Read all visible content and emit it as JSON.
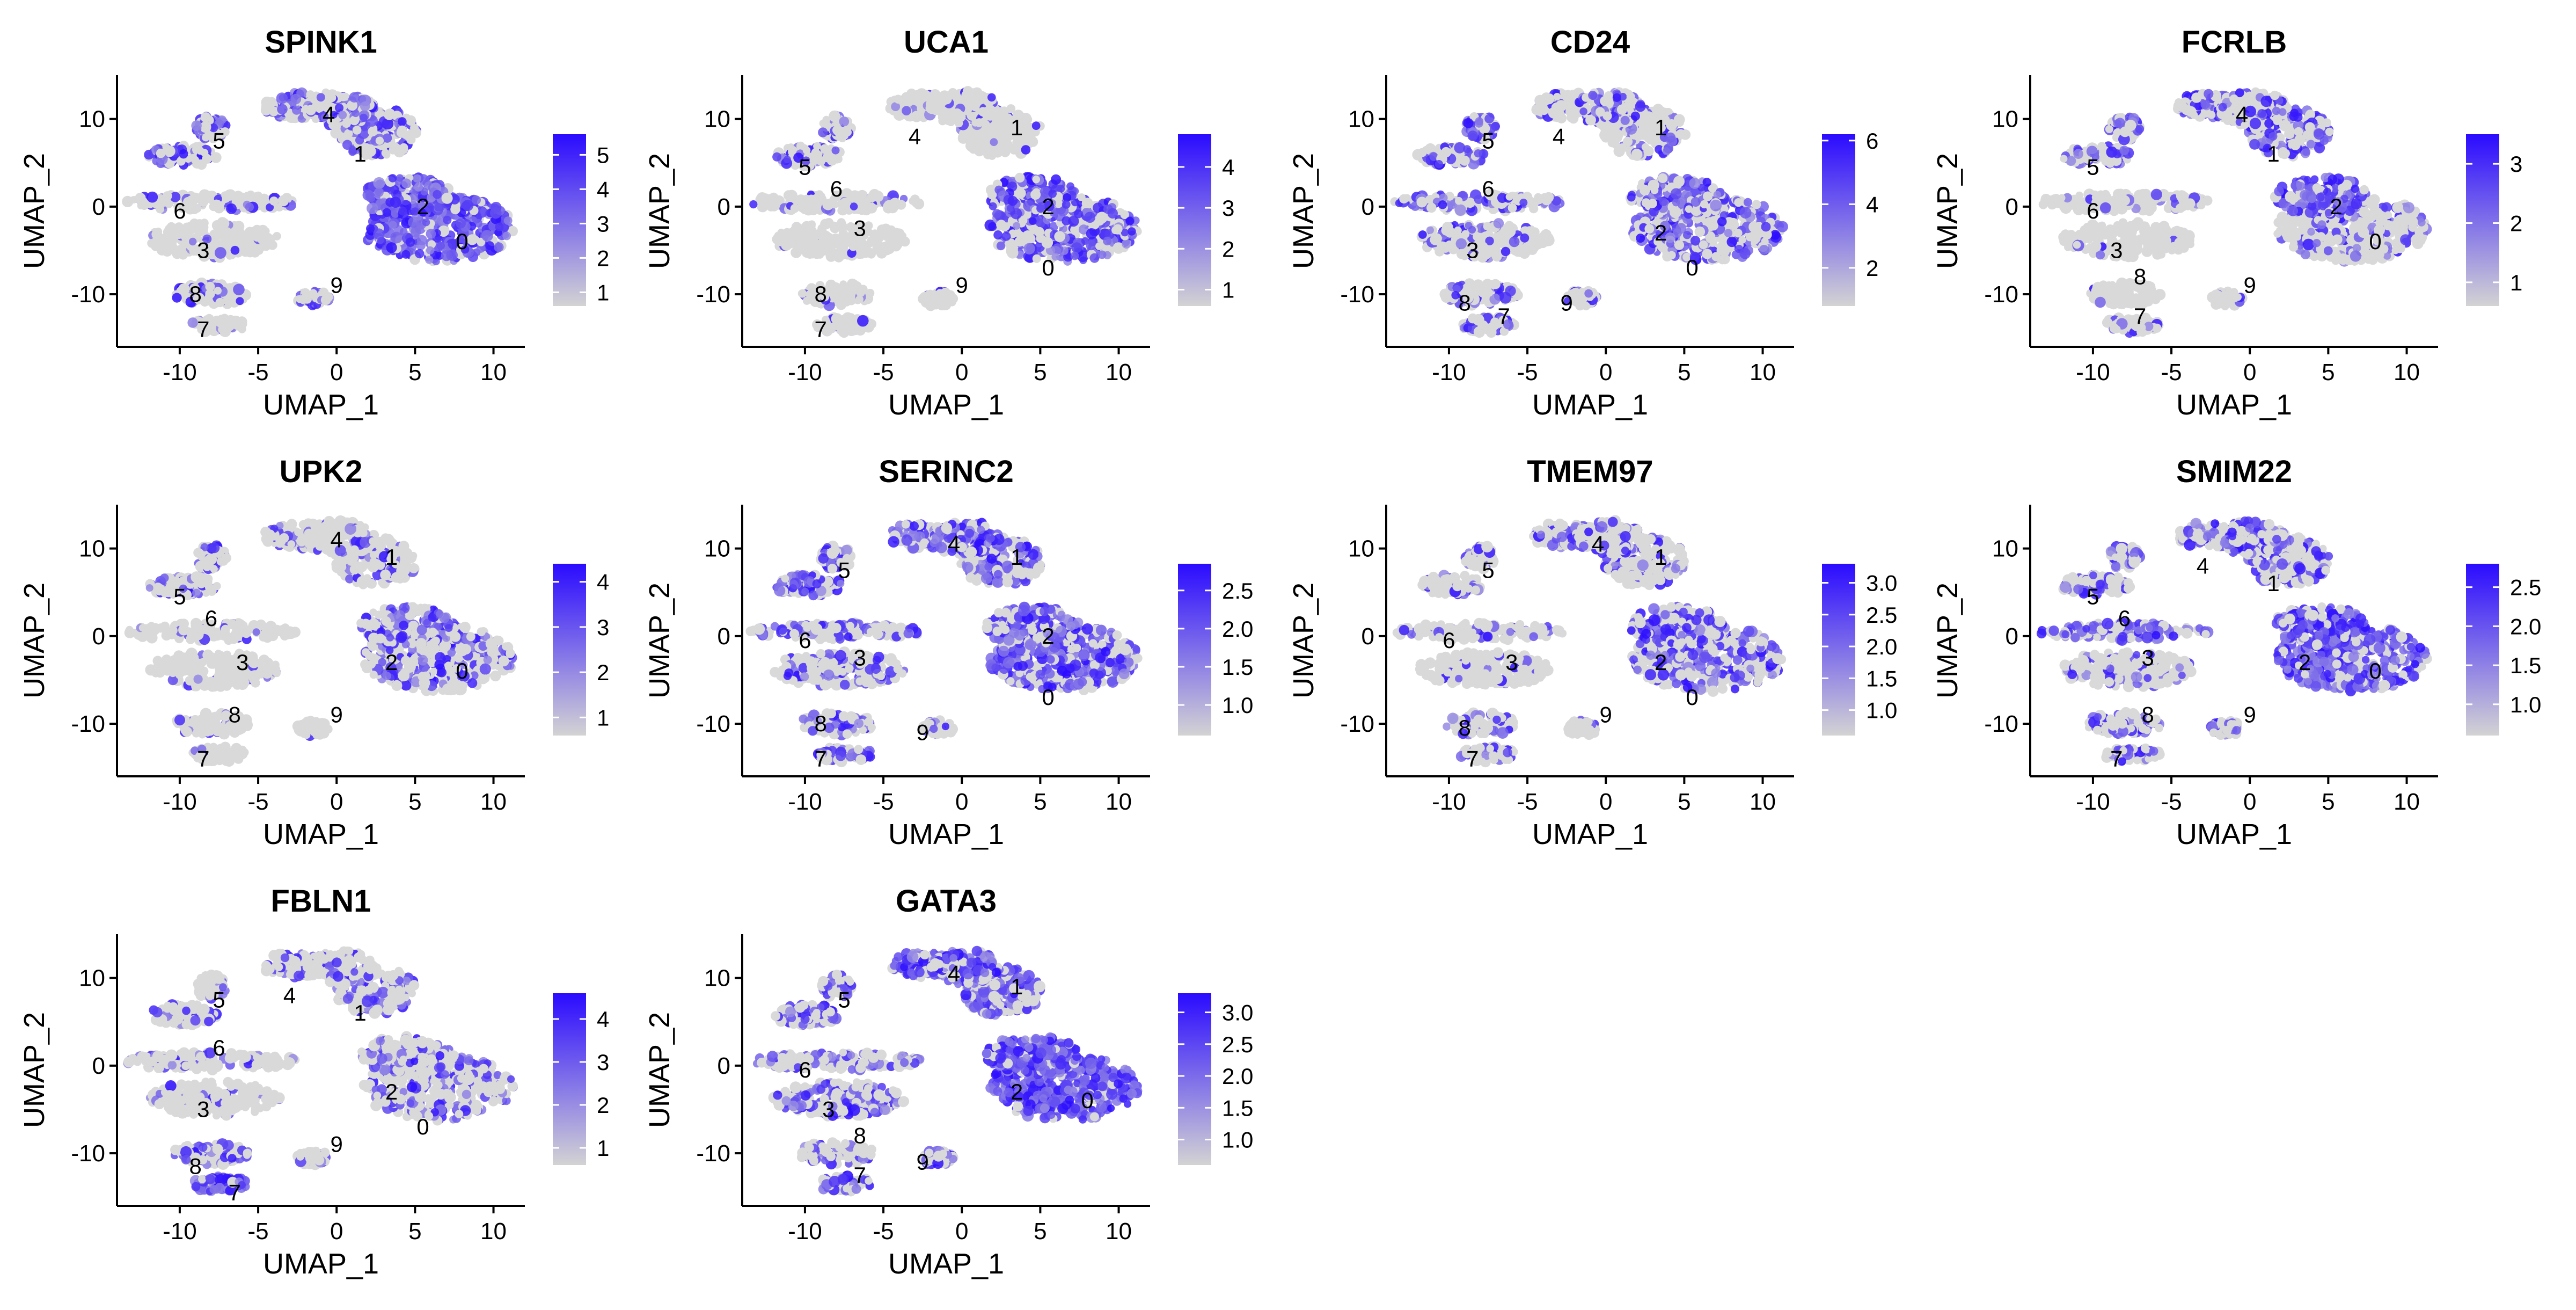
{
  "figure": {
    "type": "feature-plot-grid",
    "low_color": "#d3d3d3",
    "high_color": "#2b0bff",
    "point_color": "#d9d9d9"
  },
  "chart_data": [
    {
      "type": "scatter",
      "title": "SPINK1",
      "xlabel": "UMAP_1",
      "ylabel": "UMAP_2",
      "xlim": [
        -14,
        12
      ],
      "ylim": [
        -16,
        15
      ],
      "xticks": [
        -10,
        -5,
        0,
        5,
        10
      ],
      "yticks": [
        -10,
        0,
        10
      ],
      "legend": {
        "min": 0.6,
        "max": 5.6,
        "ticks": [
          "1",
          "2",
          "3",
          "4",
          "5"
        ],
        "tick_values": [
          1,
          2,
          3,
          4,
          5
        ]
      },
      "clusters": [
        {
          "label": "0",
          "x": 8,
          "y": -4
        },
        {
          "label": "1",
          "x": 1.5,
          "y": 6
        },
        {
          "label": "2",
          "x": 5.5,
          "y": 0
        },
        {
          "label": "3",
          "x": -8.5,
          "y": -5
        },
        {
          "label": "4",
          "x": -0.5,
          "y": 10.5
        },
        {
          "label": "5",
          "x": -7.5,
          "y": 7.5
        },
        {
          "label": "6",
          "x": -10,
          "y": -0.5
        },
        {
          "label": "7",
          "x": -8.5,
          "y": -14
        },
        {
          "label": "8",
          "x": -9,
          "y": -10
        },
        {
          "label": "9",
          "x": 0,
          "y": -9
        }
      ],
      "expression": {
        "c0": 0.8,
        "c1": 0.5,
        "c2": 0.8,
        "c3": 0.1,
        "c4": 0.4,
        "c5": 0.5,
        "c6": 0.3,
        "c7": 0.2,
        "c8": 0.4,
        "c9": 0.3
      }
    },
    {
      "type": "scatter",
      "title": "UCA1",
      "xlabel": "UMAP_1",
      "ylabel": "UMAP_2",
      "xlim": [
        -14,
        12
      ],
      "ylim": [
        -16,
        15
      ],
      "xticks": [
        -10,
        -5,
        0,
        5,
        10
      ],
      "yticks": [
        -10,
        0,
        10
      ],
      "legend": {
        "min": 0.6,
        "max": 4.8,
        "ticks": [
          "1",
          "2",
          "3",
          "4"
        ],
        "tick_values": [
          1,
          2,
          3,
          4
        ]
      },
      "clusters": [
        {
          "label": "0",
          "x": 5.5,
          "y": -7
        },
        {
          "label": "1",
          "x": 3.5,
          "y": 9
        },
        {
          "label": "2",
          "x": 5.5,
          "y": 0
        },
        {
          "label": "3",
          "x": -6.5,
          "y": -2.5
        },
        {
          "label": "4",
          "x": -3,
          "y": 8
        },
        {
          "label": "5",
          "x": -10,
          "y": 4.5
        },
        {
          "label": "6",
          "x": -8,
          "y": 2
        },
        {
          "label": "7",
          "x": -9,
          "y": -14
        },
        {
          "label": "8",
          "x": -9,
          "y": -10
        },
        {
          "label": "9",
          "x": 0,
          "y": -9
        }
      ],
      "expression": {
        "c0": 0.6,
        "c1": 0.1,
        "c2": 0.7,
        "c3": 0.05,
        "c4": 0.3,
        "c5": 0.3,
        "c6": 0.2,
        "c7": 0.05,
        "c8": 0.1,
        "c9": 0.1
      }
    },
    {
      "type": "scatter",
      "title": "CD24",
      "xlabel": "UMAP_1",
      "ylabel": "UMAP_2",
      "xlim": [
        -14,
        12
      ],
      "ylim": [
        -16,
        15
      ],
      "xticks": [
        -10,
        -5,
        0,
        5,
        10
      ],
      "yticks": [
        -10,
        0,
        10
      ],
      "legend": {
        "min": 0.8,
        "max": 6.2,
        "ticks": [
          "2",
          "4",
          "6"
        ],
        "tick_values": [
          2,
          4,
          6
        ]
      },
      "clusters": [
        {
          "label": "0",
          "x": 5.5,
          "y": -7
        },
        {
          "label": "1",
          "x": 3.5,
          "y": 9
        },
        {
          "label": "2",
          "x": 3.5,
          "y": -3
        },
        {
          "label": "3",
          "x": -8.5,
          "y": -5
        },
        {
          "label": "4",
          "x": -3,
          "y": 8
        },
        {
          "label": "5",
          "x": -7.5,
          "y": 7.5
        },
        {
          "label": "6",
          "x": -7.5,
          "y": 2
        },
        {
          "label": "7",
          "x": -6.5,
          "y": -12.5
        },
        {
          "label": "8",
          "x": -9,
          "y": -11
        },
        {
          "label": "9",
          "x": -2.5,
          "y": -11
        }
      ],
      "expression": {
        "c0": 0.5,
        "c1": 0.2,
        "c2": 0.6,
        "c3": 0.3,
        "c4": 0.4,
        "c5": 0.5,
        "c6": 0.4,
        "c7": 0.3,
        "c8": 0.3,
        "c9": 0.2
      }
    },
    {
      "type": "scatter",
      "title": "FCRLB",
      "xlabel": "UMAP_1",
      "ylabel": "UMAP_2",
      "xlim": [
        -14,
        12
      ],
      "ylim": [
        -16,
        15
      ],
      "xticks": [
        -10,
        -5,
        0,
        5,
        10
      ],
      "yticks": [
        -10,
        0,
        10
      ],
      "legend": {
        "min": 0.6,
        "max": 3.5,
        "ticks": [
          "1",
          "2",
          "3"
        ],
        "tick_values": [
          1,
          2,
          3
        ]
      },
      "clusters": [
        {
          "label": "0",
          "x": 8,
          "y": -4
        },
        {
          "label": "1",
          "x": 1.5,
          "y": 6
        },
        {
          "label": "2",
          "x": 5.5,
          "y": 0
        },
        {
          "label": "3",
          "x": -8.5,
          "y": -5
        },
        {
          "label": "4",
          "x": -0.5,
          "y": 10.5
        },
        {
          "label": "5",
          "x": -10,
          "y": 4.5
        },
        {
          "label": "6",
          "x": -10,
          "y": -0.5
        },
        {
          "label": "7",
          "x": -7,
          "y": -12.5
        },
        {
          "label": "8",
          "x": -7,
          "y": -8
        },
        {
          "label": "9",
          "x": 0,
          "y": -9
        }
      ],
      "expression": {
        "c0": 0.3,
        "c1": 0.6,
        "c2": 0.8,
        "c3": 0.05,
        "c4": 0.3,
        "c5": 0.5,
        "c6": 0.1,
        "c7": 0.1,
        "c8": 0.05,
        "c9": 0.05
      }
    },
    {
      "type": "scatter",
      "title": "UPK2",
      "xlabel": "UMAP_1",
      "ylabel": "UMAP_2",
      "xlim": [
        -14,
        12
      ],
      "ylim": [
        -16,
        15
      ],
      "xticks": [
        -10,
        -5,
        0,
        5,
        10
      ],
      "yticks": [
        -10,
        0,
        10
      ],
      "legend": {
        "min": 0.6,
        "max": 4.4,
        "ticks": [
          "1",
          "2",
          "3",
          "4"
        ],
        "tick_values": [
          1,
          2,
          3,
          4
        ]
      },
      "clusters": [
        {
          "label": "0",
          "x": 8,
          "y": -4
        },
        {
          "label": "1",
          "x": 3.5,
          "y": 9
        },
        {
          "label": "2",
          "x": 3.5,
          "y": -3
        },
        {
          "label": "3",
          "x": -6,
          "y": -3
        },
        {
          "label": "4",
          "x": 0,
          "y": 11
        },
        {
          "label": "5",
          "x": -10,
          "y": 4.5
        },
        {
          "label": "6",
          "x": -8,
          "y": 2
        },
        {
          "label": "7",
          "x": -8.5,
          "y": -14
        },
        {
          "label": "8",
          "x": -6.5,
          "y": -9
        },
        {
          "label": "9",
          "x": 0,
          "y": -9
        }
      ],
      "expression": {
        "c0": 0.4,
        "c1": 0.2,
        "c2": 0.5,
        "c3": 0.05,
        "c4": 0.15,
        "c5": 0.3,
        "c6": 0.1,
        "c7": 0.1,
        "c8": 0.1,
        "c9": 0.05
      }
    },
    {
      "type": "scatter",
      "title": "SERINC2",
      "xlabel": "UMAP_1",
      "ylabel": "UMAP_2",
      "xlim": [
        -14,
        12
      ],
      "ylim": [
        -16,
        15
      ],
      "xticks": [
        -10,
        -5,
        0,
        5,
        10
      ],
      "yticks": [
        -10,
        0,
        10
      ],
      "legend": {
        "min": 0.6,
        "max": 2.85,
        "ticks": [
          "1.0",
          "1.5",
          "2.0",
          "2.5"
        ],
        "tick_values": [
          1.0,
          1.5,
          2.0,
          2.5
        ]
      },
      "clusters": [
        {
          "label": "0",
          "x": 5.5,
          "y": -7
        },
        {
          "label": "1",
          "x": 3.5,
          "y": 9
        },
        {
          "label": "2",
          "x": 5.5,
          "y": 0
        },
        {
          "label": "3",
          "x": -6.5,
          "y": -2.5
        },
        {
          "label": "4",
          "x": -0.5,
          "y": 10.5
        },
        {
          "label": "5",
          "x": -7.5,
          "y": 7.5
        },
        {
          "label": "6",
          "x": -10,
          "y": -0.5
        },
        {
          "label": "7",
          "x": -9,
          "y": -14
        },
        {
          "label": "8",
          "x": -9,
          "y": -10
        },
        {
          "label": "9",
          "x": -2.5,
          "y": -11
        }
      ],
      "expression": {
        "c0": 0.7,
        "c1": 0.5,
        "c2": 0.7,
        "c3": 0.3,
        "c4": 0.6,
        "c5": 0.5,
        "c6": 0.4,
        "c7": 0.5,
        "c8": 0.3,
        "c9": 0.3
      }
    },
    {
      "type": "scatter",
      "title": "TMEM97",
      "xlabel": "UMAP_1",
      "ylabel": "UMAP_2",
      "xlim": [
        -14,
        12
      ],
      "ylim": [
        -16,
        15
      ],
      "xticks": [
        -10,
        -5,
        0,
        5,
        10
      ],
      "yticks": [
        -10,
        0,
        10
      ],
      "legend": {
        "min": 0.6,
        "max": 3.3,
        "ticks": [
          "1.0",
          "1.5",
          "2.0",
          "2.5",
          "3.0"
        ],
        "tick_values": [
          1.0,
          1.5,
          2.0,
          2.5,
          3.0
        ]
      },
      "clusters": [
        {
          "label": "0",
          "x": 5.5,
          "y": -7
        },
        {
          "label": "1",
          "x": 3.5,
          "y": 9
        },
        {
          "label": "2",
          "x": 3.5,
          "y": -3
        },
        {
          "label": "3",
          "x": -6,
          "y": -3
        },
        {
          "label": "4",
          "x": -0.5,
          "y": 10.5
        },
        {
          "label": "5",
          "x": -7.5,
          "y": 7.5
        },
        {
          "label": "6",
          "x": -10,
          "y": -0.5
        },
        {
          "label": "7",
          "x": -8.5,
          "y": -14
        },
        {
          "label": "8",
          "x": -9,
          "y": -10.5
        },
        {
          "label": "9",
          "x": 0,
          "y": -9
        }
      ],
      "expression": {
        "c0": 0.5,
        "c1": 0.3,
        "c2": 0.5,
        "c3": 0.1,
        "c4": 0.3,
        "c5": 0.2,
        "c6": 0.2,
        "c7": 0.3,
        "c8": 0.3,
        "c9": 0.2
      }
    },
    {
      "type": "scatter",
      "title": "SMIM22",
      "xlabel": "UMAP_1",
      "ylabel": "UMAP_2",
      "xlim": [
        -14,
        12
      ],
      "ylim": [
        -16,
        15
      ],
      "xticks": [
        -10,
        -5,
        0,
        5,
        10
      ],
      "yticks": [
        -10,
        0,
        10
      ],
      "legend": {
        "min": 0.6,
        "max": 2.8,
        "ticks": [
          "1.0",
          "1.5",
          "2.0",
          "2.5"
        ],
        "tick_values": [
          1.0,
          1.5,
          2.0,
          2.5
        ]
      },
      "clusters": [
        {
          "label": "0",
          "x": 8,
          "y": -4
        },
        {
          "label": "1",
          "x": 1.5,
          "y": 6
        },
        {
          "label": "2",
          "x": 3.5,
          "y": -3
        },
        {
          "label": "3",
          "x": -6.5,
          "y": -2.5
        },
        {
          "label": "4",
          "x": -3,
          "y": 8
        },
        {
          "label": "5",
          "x": -10,
          "y": 4.5
        },
        {
          "label": "6",
          "x": -8,
          "y": 2
        },
        {
          "label": "7",
          "x": -8.5,
          "y": -14
        },
        {
          "label": "8",
          "x": -6.5,
          "y": -9
        },
        {
          "label": "9",
          "x": 0,
          "y": -9
        }
      ],
      "expression": {
        "c0": 0.8,
        "c1": 0.4,
        "c2": 0.8,
        "c3": 0.3,
        "c4": 0.6,
        "c5": 0.5,
        "c6": 0.5,
        "c7": 0.4,
        "c8": 0.3,
        "c9": 0.3
      }
    },
    {
      "type": "scatter",
      "title": "FBLN1",
      "xlabel": "UMAP_1",
      "ylabel": "UMAP_2",
      "xlim": [
        -14,
        12
      ],
      "ylim": [
        -16,
        15
      ],
      "xticks": [
        -10,
        -5,
        0,
        5,
        10
      ],
      "yticks": [
        -10,
        0,
        10
      ],
      "legend": {
        "min": 0.6,
        "max": 4.6,
        "ticks": [
          "1",
          "2",
          "3",
          "4"
        ],
        "tick_values": [
          1,
          2,
          3,
          4
        ]
      },
      "clusters": [
        {
          "label": "0",
          "x": 5.5,
          "y": -7
        },
        {
          "label": "1",
          "x": 1.5,
          "y": 6
        },
        {
          "label": "2",
          "x": 3.5,
          "y": -3
        },
        {
          "label": "3",
          "x": -8.5,
          "y": -5
        },
        {
          "label": "4",
          "x": -3,
          "y": 8
        },
        {
          "label": "5",
          "x": -7.5,
          "y": 7.5
        },
        {
          "label": "6",
          "x": -7.5,
          "y": 2
        },
        {
          "label": "7",
          "x": -6.5,
          "y": -14.5
        },
        {
          "label": "8",
          "x": -9,
          "y": -11.5
        },
        {
          "label": "9",
          "x": 0,
          "y": -9
        }
      ],
      "expression": {
        "c0": 0.4,
        "c1": 0.3,
        "c2": 0.4,
        "c3": 0.1,
        "c4": 0.2,
        "c5": 0.3,
        "c6": 0.3,
        "c7": 0.9,
        "c8": 0.4,
        "c9": 0.2
      }
    },
    {
      "type": "scatter",
      "title": "GATA3",
      "xlabel": "UMAP_1",
      "ylabel": "UMAP_2",
      "xlim": [
        -14,
        12
      ],
      "ylim": [
        -16,
        15
      ],
      "xticks": [
        -10,
        -5,
        0,
        5,
        10
      ],
      "yticks": [
        -10,
        0,
        10
      ],
      "legend": {
        "min": 0.6,
        "max": 3.3,
        "ticks": [
          "1.0",
          "1.5",
          "2.0",
          "2.5",
          "3.0"
        ],
        "tick_values": [
          1.0,
          1.5,
          2.0,
          2.5,
          3.0
        ]
      },
      "clusters": [
        {
          "label": "0",
          "x": 8,
          "y": -4
        },
        {
          "label": "1",
          "x": 3.5,
          "y": 9
        },
        {
          "label": "2",
          "x": 3.5,
          "y": -3
        },
        {
          "label": "3",
          "x": -8.5,
          "y": -5
        },
        {
          "label": "4",
          "x": -0.5,
          "y": 10.5
        },
        {
          "label": "5",
          "x": -7.5,
          "y": 7.5
        },
        {
          "label": "6",
          "x": -10,
          "y": -0.5
        },
        {
          "label": "7",
          "x": -6.5,
          "y": -12.5
        },
        {
          "label": "8",
          "x": -6.5,
          "y": -8
        },
        {
          "label": "9",
          "x": -2.5,
          "y": -11
        }
      ],
      "expression": {
        "c0": 0.9,
        "c1": 0.6,
        "c2": 0.9,
        "c3": 0.4,
        "c4": 0.7,
        "c5": 0.5,
        "c6": 0.4,
        "c7": 0.5,
        "c8": 0.4,
        "c9": 0.3
      }
    }
  ]
}
